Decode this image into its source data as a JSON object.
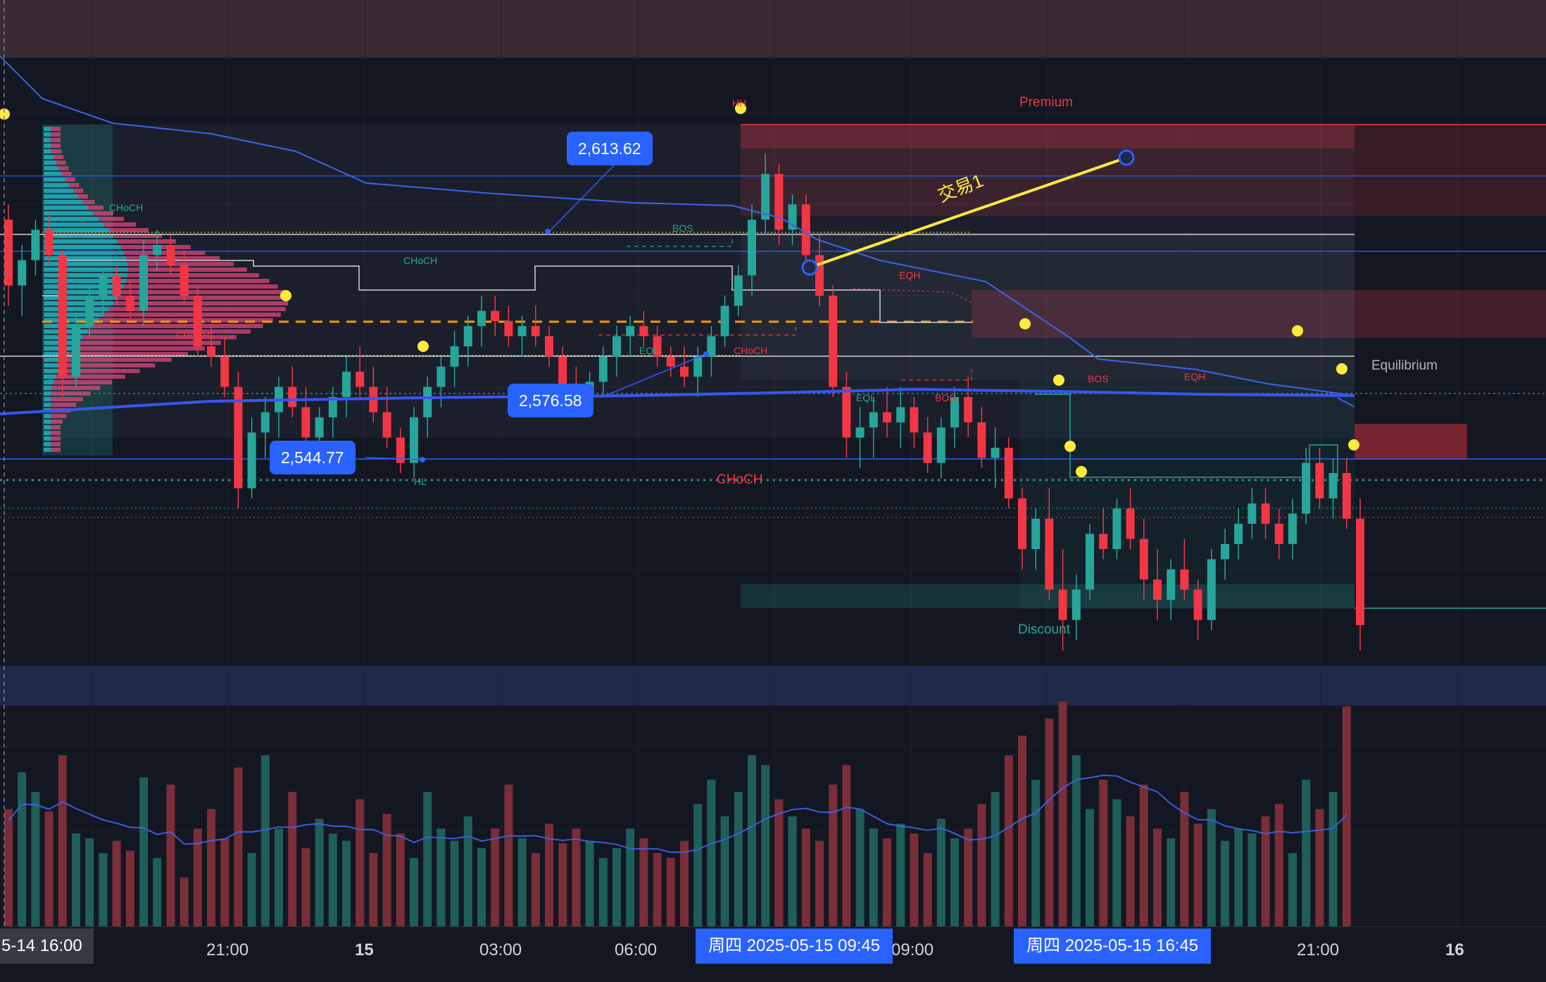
{
  "colors": {
    "background": "#131722",
    "up": "#26a69a",
    "down": "#f23645",
    "vwap": "#3d63e8",
    "accent": "#2962ff",
    "highlight": "#ffeb3b"
  },
  "price_tags": {
    "high": "2,613.62",
    "mid": "2,576.58",
    "low": "2,544.77"
  },
  "zones": {
    "premium": "Premium",
    "equilibrium": "Equilibrium",
    "discount": "Discount"
  },
  "annotation": {
    "trade": "交易1"
  },
  "smc_labels": [
    "HH",
    "CHoCH",
    "CHoCH",
    "CHoCH",
    "BOS",
    "BOS",
    "EQL",
    "EQL",
    "EQH",
    "EQH",
    "CHoCH",
    "CHoCH",
    "BOS",
    "HL"
  ],
  "time_axis": {
    "start_label": "5-14   16:00",
    "ticks": [
      "21:00",
      "15",
      "03:00",
      "06:00",
      "09:00",
      "16",
      "21:00"
    ],
    "crosshair_1": "周四 2025-05-15   09:45",
    "crosshair_2": "周四 2025-05-15   16:45"
  },
  "chart_data": {
    "type": "candlestick",
    "symbol_unit": "USD",
    "y_range": [
      2515,
      2640
    ],
    "key_levels": [
      2613.62,
      2576.58,
      2544.77
    ],
    "candles": [
      [
        2605,
        2608,
        2588,
        2592
      ],
      [
        2592,
        2600,
        2586,
        2597
      ],
      [
        2597,
        2605,
        2594,
        2603
      ],
      [
        2603,
        2606,
        2596,
        2598
      ],
      [
        2598,
        2599,
        2570,
        2574
      ],
      [
        2574,
        2586,
        2572,
        2584
      ],
      [
        2584,
        2592,
        2582,
        2590
      ],
      [
        2590,
        2595,
        2586,
        2594
      ],
      [
        2594,
        2596,
        2588,
        2590
      ],
      [
        2590,
        2593,
        2585,
        2587
      ],
      [
        2587,
        2601,
        2584,
        2598
      ],
      [
        2598,
        2603,
        2595,
        2600
      ],
      [
        2600,
        2602,
        2594,
        2596
      ],
      [
        2596,
        2599,
        2588,
        2590
      ],
      [
        2590,
        2592,
        2578,
        2580
      ],
      [
        2580,
        2584,
        2576,
        2578
      ],
      [
        2578,
        2582,
        2570,
        2572
      ],
      [
        2572,
        2575,
        2548,
        2552
      ],
      [
        2552,
        2566,
        2550,
        2563
      ],
      [
        2563,
        2570,
        2558,
        2567
      ],
      [
        2567,
        2574,
        2562,
        2572
      ],
      [
        2572,
        2576,
        2566,
        2568
      ],
      [
        2568,
        2572,
        2560,
        2562
      ],
      [
        2562,
        2568,
        2558,
        2566
      ],
      [
        2566,
        2572,
        2562,
        2570
      ],
      [
        2570,
        2578,
        2566,
        2575
      ],
      [
        2575,
        2580,
        2570,
        2572
      ],
      [
        2572,
        2576,
        2565,
        2567
      ],
      [
        2567,
        2572,
        2560,
        2562
      ],
      [
        2562,
        2564,
        2555,
        2557
      ],
      [
        2557,
        2568,
        2554,
        2566
      ],
      [
        2566,
        2574,
        2562,
        2572
      ],
      [
        2572,
        2578,
        2568,
        2576
      ],
      [
        2576,
        2583,
        2572,
        2580
      ],
      [
        2580,
        2586,
        2576,
        2584
      ],
      [
        2584,
        2590,
        2580,
        2587
      ],
      [
        2587,
        2590,
        2582,
        2585
      ],
      [
        2585,
        2588,
        2580,
        2582
      ],
      [
        2582,
        2586,
        2578,
        2584
      ],
      [
        2584,
        2588,
        2580,
        2582
      ],
      [
        2582,
        2584,
        2576,
        2578
      ],
      [
        2578,
        2580,
        2570,
        2572
      ],
      [
        2572,
        2576,
        2566,
        2570
      ],
      [
        2570,
        2575,
        2566,
        2573
      ],
      [
        2573,
        2580,
        2570,
        2578
      ],
      [
        2578,
        2584,
        2574,
        2582
      ],
      [
        2582,
        2586,
        2578,
        2584
      ],
      [
        2584,
        2587,
        2580,
        2582
      ],
      [
        2582,
        2584,
        2576,
        2578
      ],
      [
        2578,
        2580,
        2574,
        2576
      ],
      [
        2576,
        2580,
        2572,
        2574
      ],
      [
        2574,
        2580,
        2570,
        2578
      ],
      [
        2578,
        2584,
        2574,
        2582
      ],
      [
        2582,
        2590,
        2580,
        2588
      ],
      [
        2588,
        2596,
        2586,
        2594
      ],
      [
        2594,
        2608,
        2590,
        2605
      ],
      [
        2605,
        2618,
        2602,
        2614
      ],
      [
        2614,
        2616,
        2600,
        2603
      ],
      [
        2603,
        2610,
        2600,
        2608
      ],
      [
        2608,
        2610,
        2596,
        2598
      ],
      [
        2598,
        2602,
        2588,
        2590
      ],
      [
        2590,
        2592,
        2570,
        2572
      ],
      [
        2572,
        2575,
        2558,
        2562
      ],
      [
        2562,
        2568,
        2556,
        2564
      ],
      [
        2564,
        2570,
        2558,
        2567
      ],
      [
        2567,
        2572,
        2562,
        2565
      ],
      [
        2565,
        2572,
        2560,
        2568
      ],
      [
        2568,
        2570,
        2560,
        2563
      ],
      [
        2563,
        2566,
        2555,
        2557
      ],
      [
        2557,
        2566,
        2554,
        2564
      ],
      [
        2564,
        2572,
        2560,
        2570
      ],
      [
        2570,
        2574,
        2562,
        2565
      ],
      [
        2565,
        2568,
        2556,
        2558
      ],
      [
        2558,
        2564,
        2552,
        2560
      ],
      [
        2560,
        2562,
        2548,
        2550
      ],
      [
        2550,
        2552,
        2536,
        2540
      ],
      [
        2540,
        2548,
        2536,
        2546
      ],
      [
        2546,
        2552,
        2530,
        2532
      ],
      [
        2532,
        2540,
        2520,
        2526
      ],
      [
        2526,
        2535,
        2522,
        2532
      ],
      [
        2532,
        2545,
        2530,
        2543
      ],
      [
        2543,
        2548,
        2538,
        2540
      ],
      [
        2540,
        2550,
        2538,
        2548
      ],
      [
        2548,
        2552,
        2540,
        2542
      ],
      [
        2542,
        2546,
        2530,
        2534
      ],
      [
        2534,
        2540,
        2526,
        2530
      ],
      [
        2530,
        2538,
        2526,
        2536
      ],
      [
        2536,
        2542,
        2530,
        2532
      ],
      [
        2532,
        2534,
        2522,
        2526
      ],
      [
        2526,
        2540,
        2524,
        2538
      ],
      [
        2538,
        2544,
        2534,
        2541
      ],
      [
        2541,
        2548,
        2538,
        2545
      ],
      [
        2545,
        2552,
        2542,
        2549
      ],
      [
        2549,
        2552,
        2542,
        2545
      ],
      [
        2545,
        2548,
        2538,
        2541
      ],
      [
        2541,
        2550,
        2538,
        2547
      ],
      [
        2547,
        2560,
        2545,
        2557
      ],
      [
        2557,
        2560,
        2548,
        2550
      ],
      [
        2550,
        2558,
        2546,
        2555
      ],
      [
        2555,
        2558,
        2544,
        2546
      ],
      [
        2546,
        2550,
        2520,
        2525
      ]
    ],
    "volume": [
      48,
      63,
      55,
      47,
      70,
      38,
      36,
      30,
      35,
      31,
      61,
      28,
      58,
      20,
      40,
      48,
      36,
      65,
      30,
      70,
      40,
      55,
      32,
      44,
      38,
      35,
      52,
      30,
      46,
      38,
      28,
      55,
      40,
      35,
      45,
      32,
      40,
      58,
      36,
      30,
      42,
      34,
      40,
      35,
      28,
      32,
      40,
      36,
      30,
      28,
      35,
      50,
      60,
      45,
      55,
      70,
      66,
      52,
      45,
      40,
      35,
      58,
      66,
      48,
      40,
      36,
      42,
      38,
      30,
      44,
      36,
      40,
      50,
      55,
      70,
      78,
      60,
      85,
      92,
      70,
      48,
      60,
      52,
      45,
      58,
      40,
      36,
      55,
      42,
      48,
      35,
      40,
      38,
      45,
      50,
      30,
      60,
      48,
      55,
      90
    ]
  }
}
